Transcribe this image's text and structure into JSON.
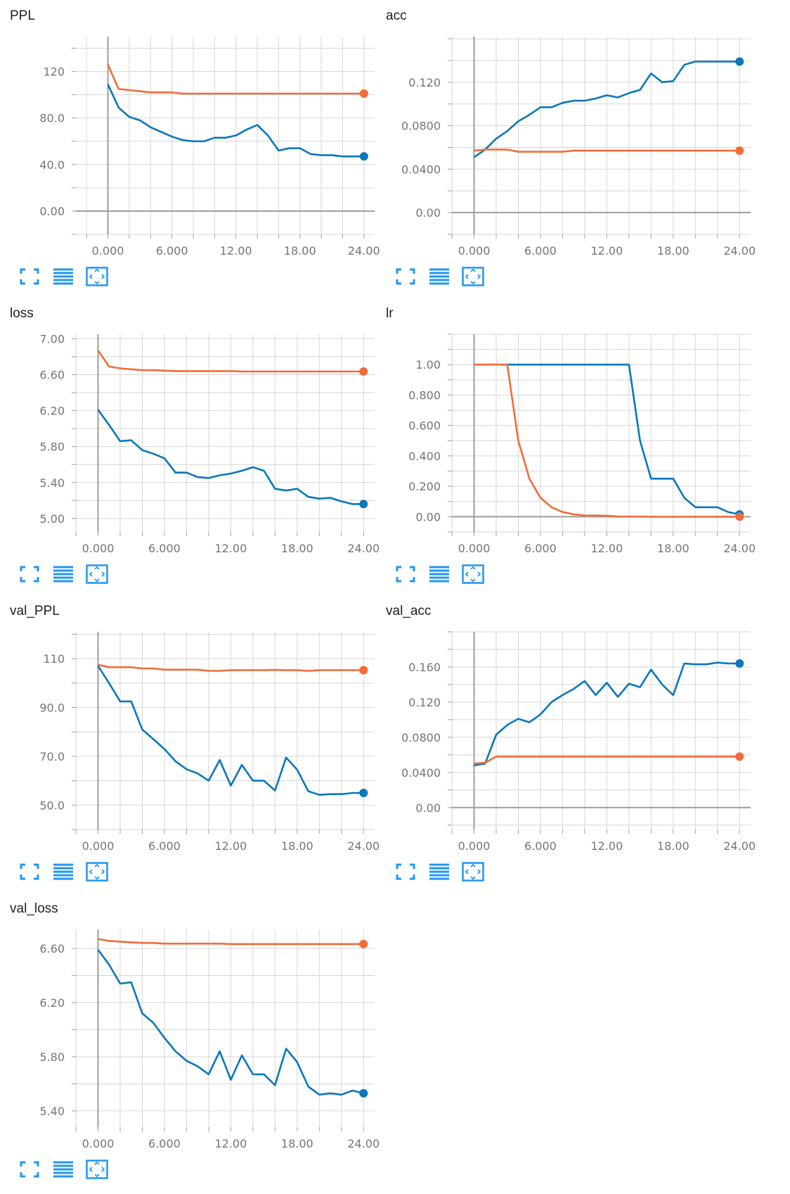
{
  "colors": {
    "series_a": "#0877bd",
    "series_b": "#f26b3a",
    "grid": "#d6d6d6",
    "axis": "#9e9e9e",
    "icon": "#2196f3"
  },
  "toolbar": {
    "expand_icon": "fullscreen-expand-icon",
    "lines_icon": "data-table-lines-icon",
    "fit_icon": "fit-domain-icon"
  },
  "chart_data": [
    {
      "type": "line",
      "title": "PPL",
      "xlim": [
        -3,
        25
      ],
      "ylim": [
        -20,
        150
      ],
      "xticks": [
        0,
        6,
        12,
        18,
        24
      ],
      "xtick_labels": [
        "0.000",
        "6.000",
        "12.00",
        "18.00",
        "24.00"
      ],
      "yticks": [
        0,
        40,
        80,
        120
      ],
      "ytick_labels": [
        "0.00",
        "40.0",
        "80.0",
        "120"
      ],
      "series": [
        {
          "color": "#0877bd",
          "x": [
            0,
            1,
            2,
            3,
            4,
            5,
            6,
            7,
            8,
            9,
            10,
            11,
            12,
            13,
            14,
            15,
            16,
            17,
            18,
            19,
            20,
            21,
            22,
            23,
            24
          ],
          "values": [
            109,
            89,
            81,
            78,
            72,
            68,
            64,
            61,
            60,
            60,
            63,
            63,
            65,
            70,
            74,
            65,
            52,
            54,
            54,
            49,
            48,
            48,
            47,
            47,
            47
          ]
        },
        {
          "color": "#f26b3a",
          "x": [
            0,
            1,
            2,
            3,
            4,
            5,
            6,
            7,
            8,
            9,
            10,
            11,
            12,
            13,
            14,
            15,
            16,
            17,
            18,
            19,
            20,
            21,
            22,
            23,
            24
          ],
          "values": [
            126,
            105,
            104,
            103,
            102,
            102,
            102,
            101,
            101,
            101,
            101,
            101,
            101,
            101,
            101,
            101,
            101,
            101,
            101,
            101,
            101,
            101,
            101,
            101,
            101
          ]
        }
      ]
    },
    {
      "type": "line",
      "title": "acc",
      "xlim": [
        -2,
        25
      ],
      "ylim": [
        -0.02,
        0.162
      ],
      "xticks": [
        0,
        6,
        12,
        18,
        24
      ],
      "xtick_labels": [
        "0.000",
        "6.000",
        "12.00",
        "18.00",
        "24.00"
      ],
      "yticks": [
        0,
        0.04,
        0.08,
        0.12
      ],
      "ytick_labels": [
        "0.00",
        "0.0400",
        "0.0800",
        "0.120"
      ],
      "series": [
        {
          "color": "#0877bd",
          "x": [
            0,
            1,
            2,
            3,
            4,
            5,
            6,
            7,
            8,
            9,
            10,
            11,
            12,
            13,
            14,
            15,
            16,
            17,
            18,
            19,
            20,
            21,
            22,
            23,
            24
          ],
          "values": [
            0.051,
            0.058,
            0.068,
            0.075,
            0.084,
            0.09,
            0.097,
            0.097,
            0.101,
            0.103,
            0.103,
            0.105,
            0.108,
            0.106,
            0.11,
            0.113,
            0.128,
            0.12,
            0.121,
            0.136,
            0.139,
            0.139,
            0.139,
            0.139,
            0.139
          ]
        },
        {
          "color": "#f26b3a",
          "x": [
            0,
            1,
            2,
            3,
            4,
            5,
            6,
            7,
            8,
            9,
            10,
            11,
            12,
            13,
            14,
            15,
            16,
            17,
            18,
            19,
            20,
            21,
            22,
            23,
            24
          ],
          "values": [
            0.057,
            0.058,
            0.058,
            0.058,
            0.056,
            0.056,
            0.056,
            0.056,
            0.056,
            0.057,
            0.057,
            0.057,
            0.057,
            0.057,
            0.057,
            0.057,
            0.057,
            0.057,
            0.057,
            0.057,
            0.057,
            0.057,
            0.057,
            0.057,
            0.057
          ]
        }
      ]
    },
    {
      "type": "line",
      "title": "loss",
      "xlim": [
        -2,
        25
      ],
      "ylim": [
        4.85,
        7.05
      ],
      "xticks": [
        0,
        6,
        12,
        18,
        24
      ],
      "xtick_labels": [
        "0.000",
        "6.000",
        "12.00",
        "18.00",
        "24.00"
      ],
      "yticks": [
        5.0,
        5.4,
        5.8,
        6.2,
        6.6,
        7.0
      ],
      "ytick_labels": [
        "5.00",
        "5.40",
        "5.80",
        "6.20",
        "6.60",
        "7.00"
      ],
      "series": [
        {
          "color": "#0877bd",
          "x": [
            0,
            1,
            2,
            3,
            4,
            5,
            6,
            7,
            8,
            9,
            10,
            11,
            12,
            13,
            14,
            15,
            16,
            17,
            18,
            19,
            20,
            21,
            22,
            23,
            24
          ],
          "values": [
            6.21,
            6.04,
            5.86,
            5.87,
            5.76,
            5.72,
            5.67,
            5.51,
            5.51,
            5.46,
            5.45,
            5.48,
            5.5,
            5.53,
            5.57,
            5.53,
            5.33,
            5.31,
            5.33,
            5.24,
            5.22,
            5.23,
            5.19,
            5.16,
            5.16
          ]
        },
        {
          "color": "#f26b3a",
          "x": [
            0,
            1,
            2,
            3,
            4,
            5,
            6,
            7,
            8,
            9,
            10,
            11,
            12,
            13,
            14,
            15,
            16,
            17,
            18,
            19,
            20,
            21,
            22,
            23,
            24
          ],
          "values": [
            6.87,
            6.69,
            6.67,
            6.66,
            6.65,
            6.65,
            6.645,
            6.64,
            6.64,
            6.64,
            6.64,
            6.64,
            6.64,
            6.635,
            6.635,
            6.635,
            6.635,
            6.635,
            6.635,
            6.635,
            6.635,
            6.635,
            6.635,
            6.635,
            6.635
          ]
        }
      ]
    },
    {
      "type": "line",
      "title": "lr",
      "xlim": [
        -2,
        25
      ],
      "ylim": [
        -0.1,
        1.2
      ],
      "xticks": [
        0,
        6,
        12,
        18,
        24
      ],
      "xtick_labels": [
        "0.000",
        "6.000",
        "12.00",
        "18.00",
        "24.00"
      ],
      "yticks": [
        0,
        0.2,
        0.4,
        0.6,
        0.8,
        1.0
      ],
      "ytick_labels": [
        "0.00",
        "0.200",
        "0.400",
        "0.600",
        "0.800",
        "1.00"
      ],
      "series": [
        {
          "color": "#0877bd",
          "x": [
            0,
            1,
            2,
            3,
            4,
            5,
            6,
            7,
            8,
            9,
            10,
            11,
            12,
            13,
            14,
            15,
            16,
            17,
            18,
            19,
            20,
            21,
            22,
            23,
            24
          ],
          "values": [
            1,
            1,
            1,
            1,
            1,
            1,
            1,
            1,
            1,
            1,
            1,
            1,
            1,
            1,
            1,
            0.5,
            0.25,
            0.25,
            0.25,
            0.125,
            0.0625,
            0.0625,
            0.0625,
            0.03,
            0.015
          ]
        },
        {
          "color": "#f26b3a",
          "x": [
            0,
            1,
            2,
            3,
            4,
            5,
            6,
            7,
            8,
            9,
            10,
            11,
            12,
            13,
            14,
            15,
            16,
            17,
            18,
            19,
            20,
            21,
            22,
            23,
            24
          ],
          "values": [
            1,
            1,
            1,
            1,
            0.5,
            0.25,
            0.125,
            0.0625,
            0.031,
            0.016,
            0.008,
            0.008,
            0.006,
            0.002,
            0.001,
            0.001,
            0,
            0,
            0,
            0,
            0,
            0,
            0,
            0,
            0
          ]
        }
      ]
    },
    {
      "type": "line",
      "title": "val_PPL",
      "xlim": [
        -2,
        25
      ],
      "ylim": [
        40,
        121
      ],
      "xticks": [
        0,
        6,
        12,
        18,
        24
      ],
      "xtick_labels": [
        "0.000",
        "6.000",
        "12.00",
        "18.00",
        "24.00"
      ],
      "yticks": [
        50,
        70,
        90,
        110
      ],
      "ytick_labels": [
        "50.0",
        "70.0",
        "90.0",
        "110"
      ],
      "series": [
        {
          "color": "#0877bd",
          "x": [
            0,
            1,
            2,
            3,
            4,
            5,
            6,
            7,
            8,
            9,
            10,
            11,
            12,
            13,
            14,
            15,
            16,
            17,
            18,
            19,
            20,
            21,
            22,
            23,
            24
          ],
          "values": [
            107,
            100,
            92.5,
            92.5,
            81,
            77,
            73,
            68,
            64.7,
            63,
            60,
            68.5,
            58,
            66.5,
            60,
            60,
            56,
            69.5,
            64.5,
            55.7,
            54.2,
            54.5,
            54.5,
            55,
            55
          ]
        },
        {
          "color": "#f26b3a",
          "x": [
            0,
            1,
            2,
            3,
            4,
            5,
            6,
            7,
            8,
            9,
            10,
            11,
            12,
            13,
            14,
            15,
            16,
            17,
            18,
            19,
            20,
            21,
            22,
            23,
            24
          ],
          "values": [
            107.5,
            106.5,
            106.5,
            106.5,
            106,
            106,
            105.5,
            105.5,
            105.5,
            105.5,
            105,
            105,
            105.3,
            105.3,
            105.3,
            105.3,
            105.4,
            105.3,
            105.3,
            105,
            105.3,
            105.3,
            105.3,
            105.3,
            105.3
          ]
        }
      ]
    },
    {
      "type": "line",
      "title": "val_acc",
      "xlim": [
        -2,
        25
      ],
      "ylim": [
        -0.025,
        0.2
      ],
      "xticks": [
        0,
        6,
        12,
        18,
        24
      ],
      "xtick_labels": [
        "0.000",
        "6.000",
        "12.00",
        "18.00",
        "24.00"
      ],
      "yticks": [
        0,
        0.04,
        0.08,
        0.12,
        0.16
      ],
      "ytick_labels": [
        "0.00",
        "0.0400",
        "0.0800",
        "0.120",
        "0.160"
      ],
      "series": [
        {
          "color": "#0877bd",
          "x": [
            0,
            1,
            2,
            3,
            4,
            5,
            6,
            7,
            8,
            9,
            10,
            11,
            12,
            13,
            14,
            15,
            16,
            17,
            18,
            19,
            20,
            21,
            22,
            23,
            24
          ],
          "values": [
            0.048,
            0.05,
            0.083,
            0.094,
            0.101,
            0.097,
            0.106,
            0.12,
            0.128,
            0.135,
            0.144,
            0.128,
            0.142,
            0.126,
            0.141,
            0.137,
            0.157,
            0.14,
            0.128,
            0.164,
            0.163,
            0.163,
            0.165,
            0.164,
            0.164
          ]
        },
        {
          "color": "#f26b3a",
          "x": [
            0,
            1,
            2,
            3,
            4,
            5,
            6,
            7,
            8,
            9,
            10,
            11,
            12,
            13,
            14,
            15,
            16,
            17,
            18,
            19,
            20,
            21,
            22,
            23,
            24
          ],
          "values": [
            0.05,
            0.051,
            0.058,
            0.058,
            0.058,
            0.058,
            0.058,
            0.058,
            0.058,
            0.058,
            0.058,
            0.058,
            0.058,
            0.058,
            0.058,
            0.058,
            0.058,
            0.058,
            0.058,
            0.058,
            0.058,
            0.058,
            0.058,
            0.058,
            0.058
          ]
        }
      ]
    },
    {
      "type": "line",
      "title": "val_loss",
      "xlim": [
        -2,
        25
      ],
      "ylim": [
        5.28,
        6.74
      ],
      "xticks": [
        0,
        6,
        12,
        18,
        24
      ],
      "xtick_labels": [
        "0.000",
        "6.000",
        "12.00",
        "18.00",
        "24.00"
      ],
      "yticks": [
        5.4,
        5.8,
        6.2,
        6.6
      ],
      "ytick_labels": [
        "5.40",
        "5.80",
        "6.20",
        "6.60"
      ],
      "series": [
        {
          "color": "#0877bd",
          "x": [
            0,
            1,
            2,
            3,
            4,
            5,
            6,
            7,
            8,
            9,
            10,
            11,
            12,
            13,
            14,
            15,
            16,
            17,
            18,
            19,
            20,
            21,
            22,
            23,
            24
          ],
          "values": [
            6.59,
            6.48,
            6.34,
            6.35,
            6.12,
            6.05,
            5.94,
            5.84,
            5.77,
            5.73,
            5.67,
            5.84,
            5.63,
            5.81,
            5.67,
            5.67,
            5.59,
            5.86,
            5.76,
            5.58,
            5.52,
            5.53,
            5.52,
            5.55,
            5.53
          ]
        },
        {
          "color": "#f26b3a",
          "x": [
            0,
            1,
            2,
            3,
            4,
            5,
            6,
            7,
            8,
            9,
            10,
            11,
            12,
            13,
            14,
            15,
            16,
            17,
            18,
            19,
            20,
            21,
            22,
            23,
            24
          ],
          "values": [
            6.67,
            6.655,
            6.65,
            6.645,
            6.64,
            6.64,
            6.635,
            6.635,
            6.635,
            6.635,
            6.635,
            6.635,
            6.632,
            6.632,
            6.632,
            6.632,
            6.632,
            6.632,
            6.632,
            6.632,
            6.632,
            6.632,
            6.632,
            6.632,
            6.632
          ]
        }
      ]
    }
  ]
}
